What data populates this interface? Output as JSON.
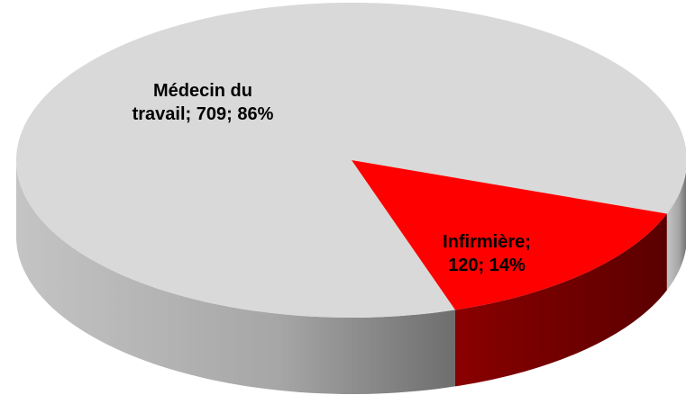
{
  "chart_data": {
    "type": "pie3d",
    "categories": [
      "Médecin du travail",
      "Infirmière"
    ],
    "values": [
      709,
      120
    ],
    "value_labels": [
      "Médecin du travail; 709; 86%",
      "Infirmière; 120; 14%"
    ],
    "colors": [
      "#d9d9d9",
      "#ff0000"
    ]
  }
}
